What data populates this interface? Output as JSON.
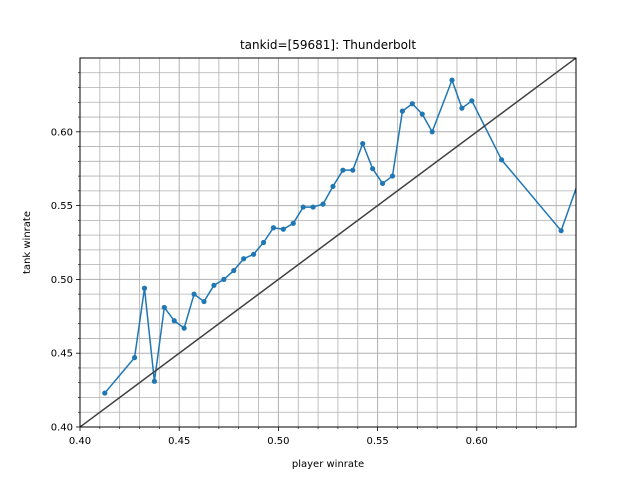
{
  "chart_data": {
    "type": "line",
    "title": "tankid=[59681]: Thunderbolt",
    "xlabel": "player winrate",
    "ylabel": "tank winrate",
    "xlim": [
      0.4,
      0.65
    ],
    "ylim": [
      0.4,
      0.65
    ],
    "x_ticks": [
      "0.40",
      "0.45",
      "0.50",
      "0.55",
      "0.60"
    ],
    "y_ticks": [
      "0.40",
      "0.45",
      "0.50",
      "0.55",
      "0.60"
    ],
    "grid": true,
    "minor_grid": true,
    "series": [
      {
        "color": "#1f77b4",
        "marker": "dot",
        "x": [
          0.4125,
          0.4275,
          0.4325,
          0.4375,
          0.4425,
          0.4475,
          0.4525,
          0.4575,
          0.4625,
          0.4675,
          0.4725,
          0.4775,
          0.4825,
          0.4875,
          0.4925,
          0.4975,
          0.5025,
          0.5075,
          0.5125,
          0.5175,
          0.5225,
          0.5275,
          0.5325,
          0.5375,
          0.5425,
          0.5475,
          0.5525,
          0.5575,
          0.5625,
          0.5675,
          0.5725,
          0.5775,
          0.5875,
          0.5925,
          0.5975,
          0.6125,
          0.6425,
          0.6575
        ],
        "y": [
          0.423,
          0.447,
          0.494,
          0.431,
          0.481,
          0.472,
          0.467,
          0.49,
          0.485,
          0.496,
          0.5,
          0.506,
          0.514,
          0.517,
          0.525,
          0.535,
          0.534,
          0.538,
          0.549,
          0.549,
          0.551,
          0.563,
          0.574,
          0.574,
          0.592,
          0.575,
          0.565,
          0.57,
          0.614,
          0.619,
          0.612,
          0.6,
          0.635,
          0.616,
          0.621,
          0.581,
          0.533,
          0.59
        ]
      },
      {
        "color": "#404040",
        "marker": "none",
        "x": [
          0.4,
          0.65
        ],
        "y": [
          0.4,
          0.65
        ]
      }
    ]
  }
}
